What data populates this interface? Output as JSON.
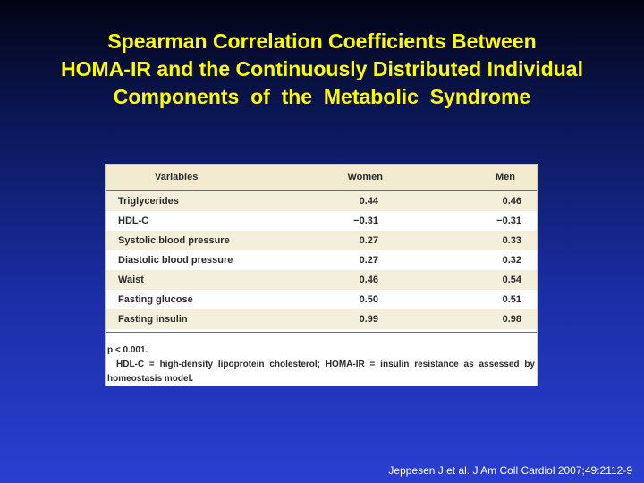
{
  "slide": {
    "title_lines": [
      "Spearman Correlation Coefficients Between",
      "HOMA-IR and the Continuously Distributed Individual",
      "Components  of  the  Metabolic  Syndrome"
    ]
  },
  "table": {
    "columns": [
      "Variables",
      "Women",
      "Men"
    ],
    "rows": [
      {
        "variable": "Triglycerides",
        "women": "0.44",
        "men": "0.46"
      },
      {
        "variable": "HDL-C",
        "women": "−0.31",
        "men": "−0.31"
      },
      {
        "variable": "Systolic blood pressure",
        "women": "0.27",
        "men": "0.33"
      },
      {
        "variable": "Diastolic blood pressure",
        "women": "0.27",
        "men": "0.32"
      },
      {
        "variable": "Waist",
        "women": "0.46",
        "men": "0.54"
      },
      {
        "variable": "Fasting glucose",
        "women": "0.50",
        "men": "0.51"
      },
      {
        "variable": "Fasting insulin",
        "women": "0.99",
        "men": "0.98"
      }
    ],
    "footnote_p": "p < 0.001.",
    "footnote_abbrev": "HDL-C = high-density lipoprotein cholesterol; HOMA-IR = insulin resistance as assessed by homeostasis model."
  },
  "citation": "Jeppesen J et al. J Am Coll Cardiol 2007;49:2112-9",
  "colors": {
    "title": "#ffff00",
    "background_top": "#020414",
    "background_bottom": "#2a3fd2",
    "table_shade": "#f4efda"
  }
}
